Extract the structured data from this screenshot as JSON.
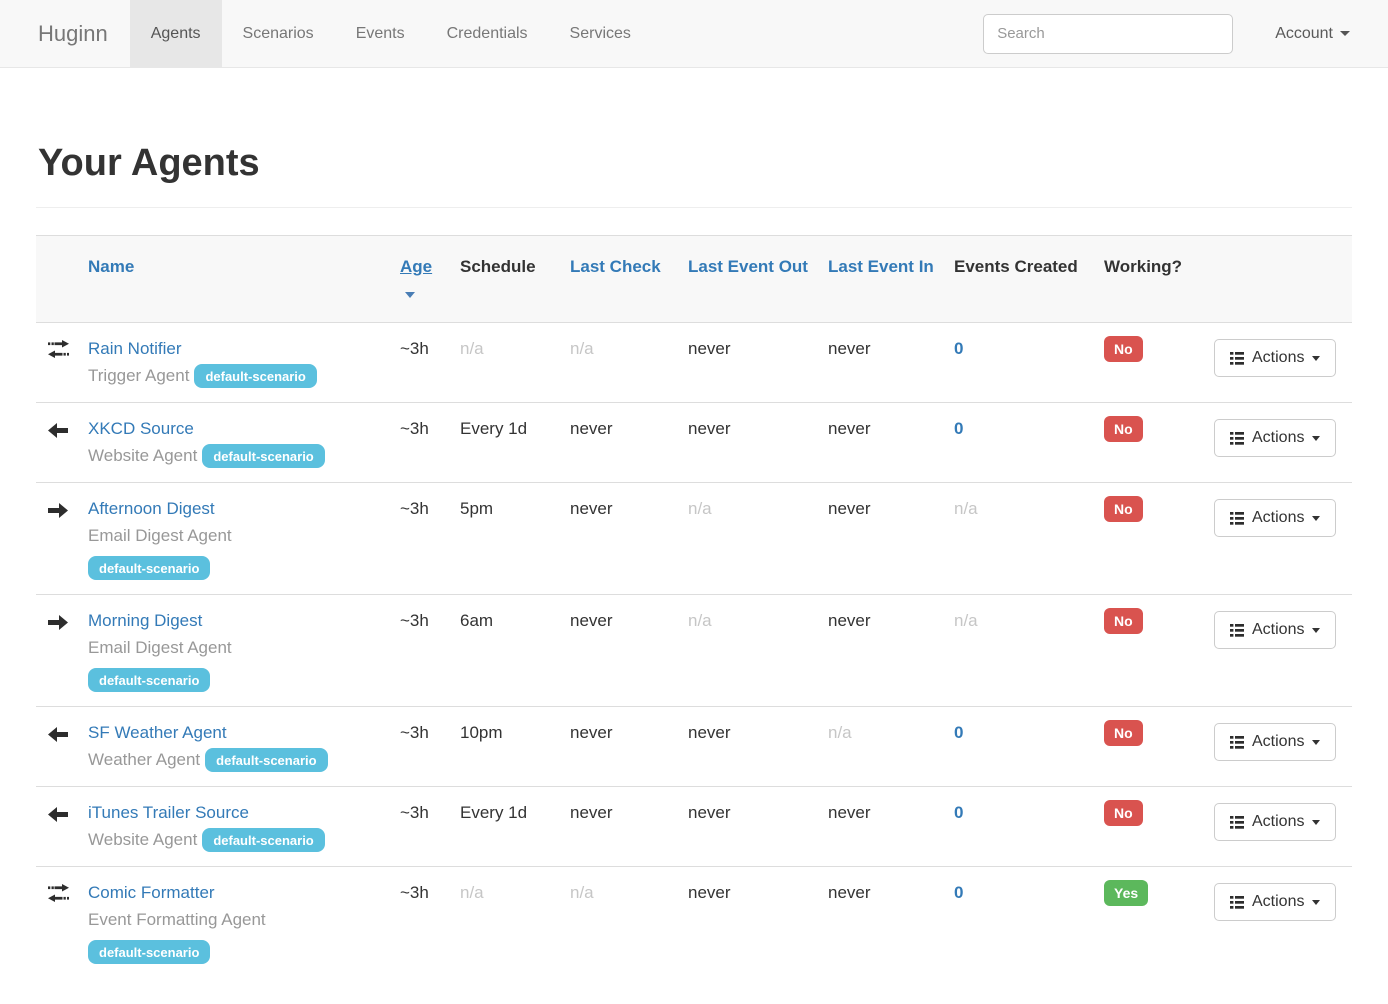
{
  "navbar": {
    "brand": "Huginn",
    "tabs": [
      {
        "label": "Agents",
        "active": true
      },
      {
        "label": "Scenarios",
        "active": false
      },
      {
        "label": "Events",
        "active": false
      },
      {
        "label": "Credentials",
        "active": false
      },
      {
        "label": "Services",
        "active": false
      }
    ],
    "search_placeholder": "Search",
    "account_label": "Account"
  },
  "page": {
    "title": "Your Agents"
  },
  "colors": {
    "accent_link": "#337ab7",
    "scenario_badge": "#5bc0de",
    "working_no": "#d9534f",
    "working_yes": "#5cb85c",
    "navbar_bg": "#f8f8f8",
    "active_tab_bg": "#e7e7e7"
  },
  "table": {
    "headers": {
      "name": "Name",
      "age": "Age",
      "schedule": "Schedule",
      "last_check": "Last Check",
      "last_event_out": "Last Event Out",
      "last_event_in": "Last Event In",
      "events_created": "Events Created",
      "working": "Working?"
    },
    "sort": {
      "column": "Age",
      "direction": "desc"
    },
    "actions_label": "Actions",
    "rows": [
      {
        "icon": "arrow-both-icon",
        "name": "Rain Notifier",
        "type": "Trigger Agent",
        "scenario": "default-scenario",
        "age": "~3h",
        "schedule": {
          "text": "n/a",
          "muted": true
        },
        "last_check": {
          "text": "n/a",
          "muted": true
        },
        "last_event_out": "never",
        "last_event_in": "never",
        "events_created": {
          "text": "0",
          "link": true
        },
        "working": {
          "text": "No",
          "status": "no"
        }
      },
      {
        "icon": "arrow-left-icon",
        "name": "XKCD Source",
        "type": "Website Agent",
        "scenario": "default-scenario",
        "age": "~3h",
        "schedule": "Every 1d",
        "last_check": "never",
        "last_event_out": "never",
        "last_event_in": "never",
        "events_created": {
          "text": "0",
          "link": true
        },
        "working": {
          "text": "No",
          "status": "no"
        }
      },
      {
        "icon": "arrow-right-icon",
        "name": "Afternoon Digest",
        "type": "Email Digest Agent",
        "scenario": "default-scenario",
        "age": "~3h",
        "schedule": "5pm",
        "last_check": "never",
        "last_event_out": {
          "text": "n/a",
          "muted": true
        },
        "last_event_in": "never",
        "events_created": {
          "text": "n/a",
          "muted": true
        },
        "working": {
          "text": "No",
          "status": "no"
        }
      },
      {
        "icon": "arrow-right-icon",
        "name": "Morning Digest",
        "type": "Email Digest Agent",
        "scenario": "default-scenario",
        "age": "~3h",
        "schedule": "6am",
        "last_check": "never",
        "last_event_out": {
          "text": "n/a",
          "muted": true
        },
        "last_event_in": "never",
        "events_created": {
          "text": "n/a",
          "muted": true
        },
        "working": {
          "text": "No",
          "status": "no"
        }
      },
      {
        "icon": "arrow-left-icon",
        "name": "SF Weather Agent",
        "type": "Weather Agent",
        "scenario": "default-scenario",
        "age": "~3h",
        "schedule": "10pm",
        "last_check": "never",
        "last_event_out": "never",
        "last_event_in": {
          "text": "n/a",
          "muted": true
        },
        "events_created": {
          "text": "0",
          "link": true
        },
        "working": {
          "text": "No",
          "status": "no"
        }
      },
      {
        "icon": "arrow-left-icon",
        "name": "iTunes Trailer Source",
        "type": "Website Agent",
        "scenario": "default-scenario",
        "age": "~3h",
        "schedule": "Every 1d",
        "last_check": "never",
        "last_event_out": "never",
        "last_event_in": "never",
        "events_created": {
          "text": "0",
          "link": true
        },
        "working": {
          "text": "No",
          "status": "no"
        }
      },
      {
        "icon": "arrow-both-icon",
        "name": "Comic Formatter",
        "type": "Event Formatting Agent",
        "scenario": "default-scenario",
        "age": "~3h",
        "schedule": {
          "text": "n/a",
          "muted": true
        },
        "last_check": {
          "text": "n/a",
          "muted": true
        },
        "last_event_out": "never",
        "last_event_in": "never",
        "events_created": {
          "text": "0",
          "link": true
        },
        "working": {
          "text": "Yes",
          "status": "yes"
        }
      }
    ]
  }
}
